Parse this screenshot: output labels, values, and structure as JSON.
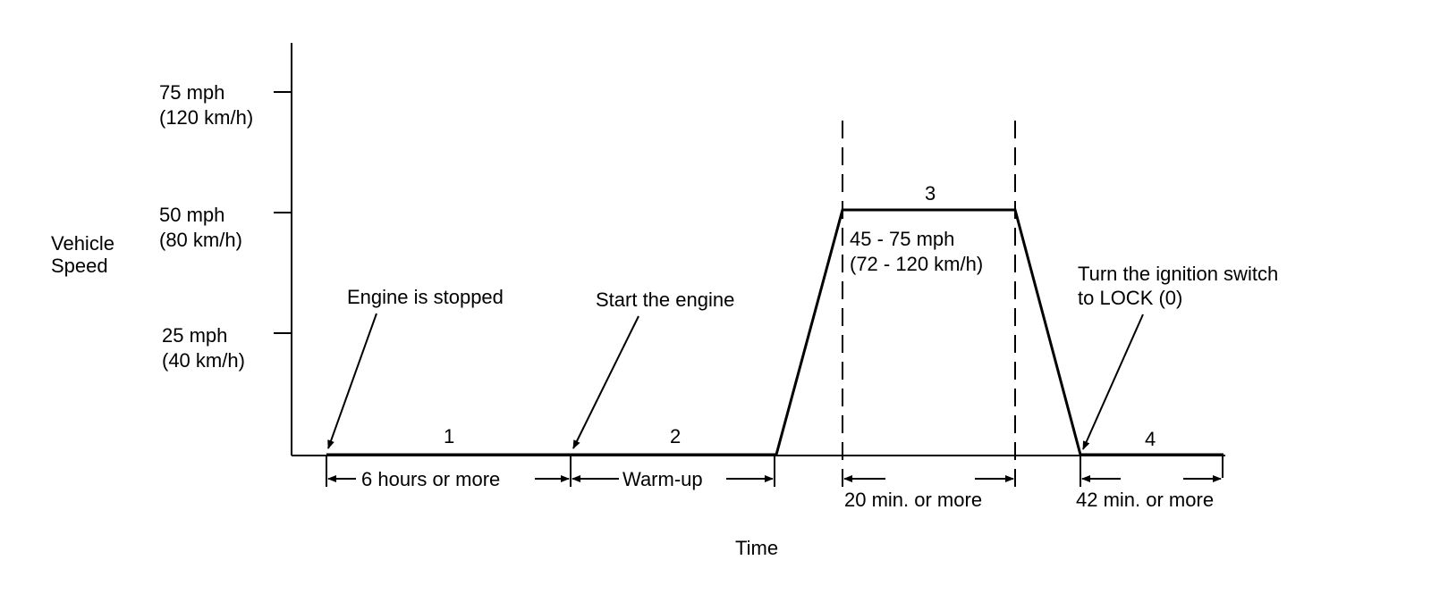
{
  "axis": {
    "y_label_line1": "Vehicle",
    "y_label_line2": "Speed",
    "x_label": "Time",
    "ticks": [
      {
        "mph": "75 mph",
        "kmh": "(120 km/h)"
      },
      {
        "mph": "50 mph",
        "kmh": "(80 km/h)"
      },
      {
        "mph": "25 mph",
        "kmh": "(40 km/h)"
      }
    ]
  },
  "phases": [
    {
      "number": "1",
      "duration": "6 hours or more"
    },
    {
      "number": "2",
      "duration": "Warm-up"
    },
    {
      "number": "3",
      "duration": "20 min. or more",
      "speed_mph": "45 - 75 mph",
      "speed_kmh": "(72 - 120 km/h)"
    },
    {
      "number": "4",
      "duration": "42 min. or more"
    }
  ],
  "annotations": {
    "engine_stopped": "Engine is stopped",
    "start_engine": "Start the engine",
    "ignition_line1": "Turn the ignition switch",
    "ignition_line2": "to LOCK (0)"
  },
  "chart_data": {
    "type": "line",
    "xlabel": "Time",
    "ylabel": "Vehicle Speed",
    "y_ticks_mph": [
      25,
      50,
      75
    ],
    "y_ticks_kmh": [
      40,
      80,
      120
    ],
    "profile_speed_mph": [
      0,
      0,
      0,
      50,
      50,
      0,
      0
    ],
    "phase_speed_range_mph": {
      "3": [
        45,
        75
      ]
    },
    "phase_speed_range_kmh": {
      "3": [
        72,
        120
      ]
    }
  }
}
